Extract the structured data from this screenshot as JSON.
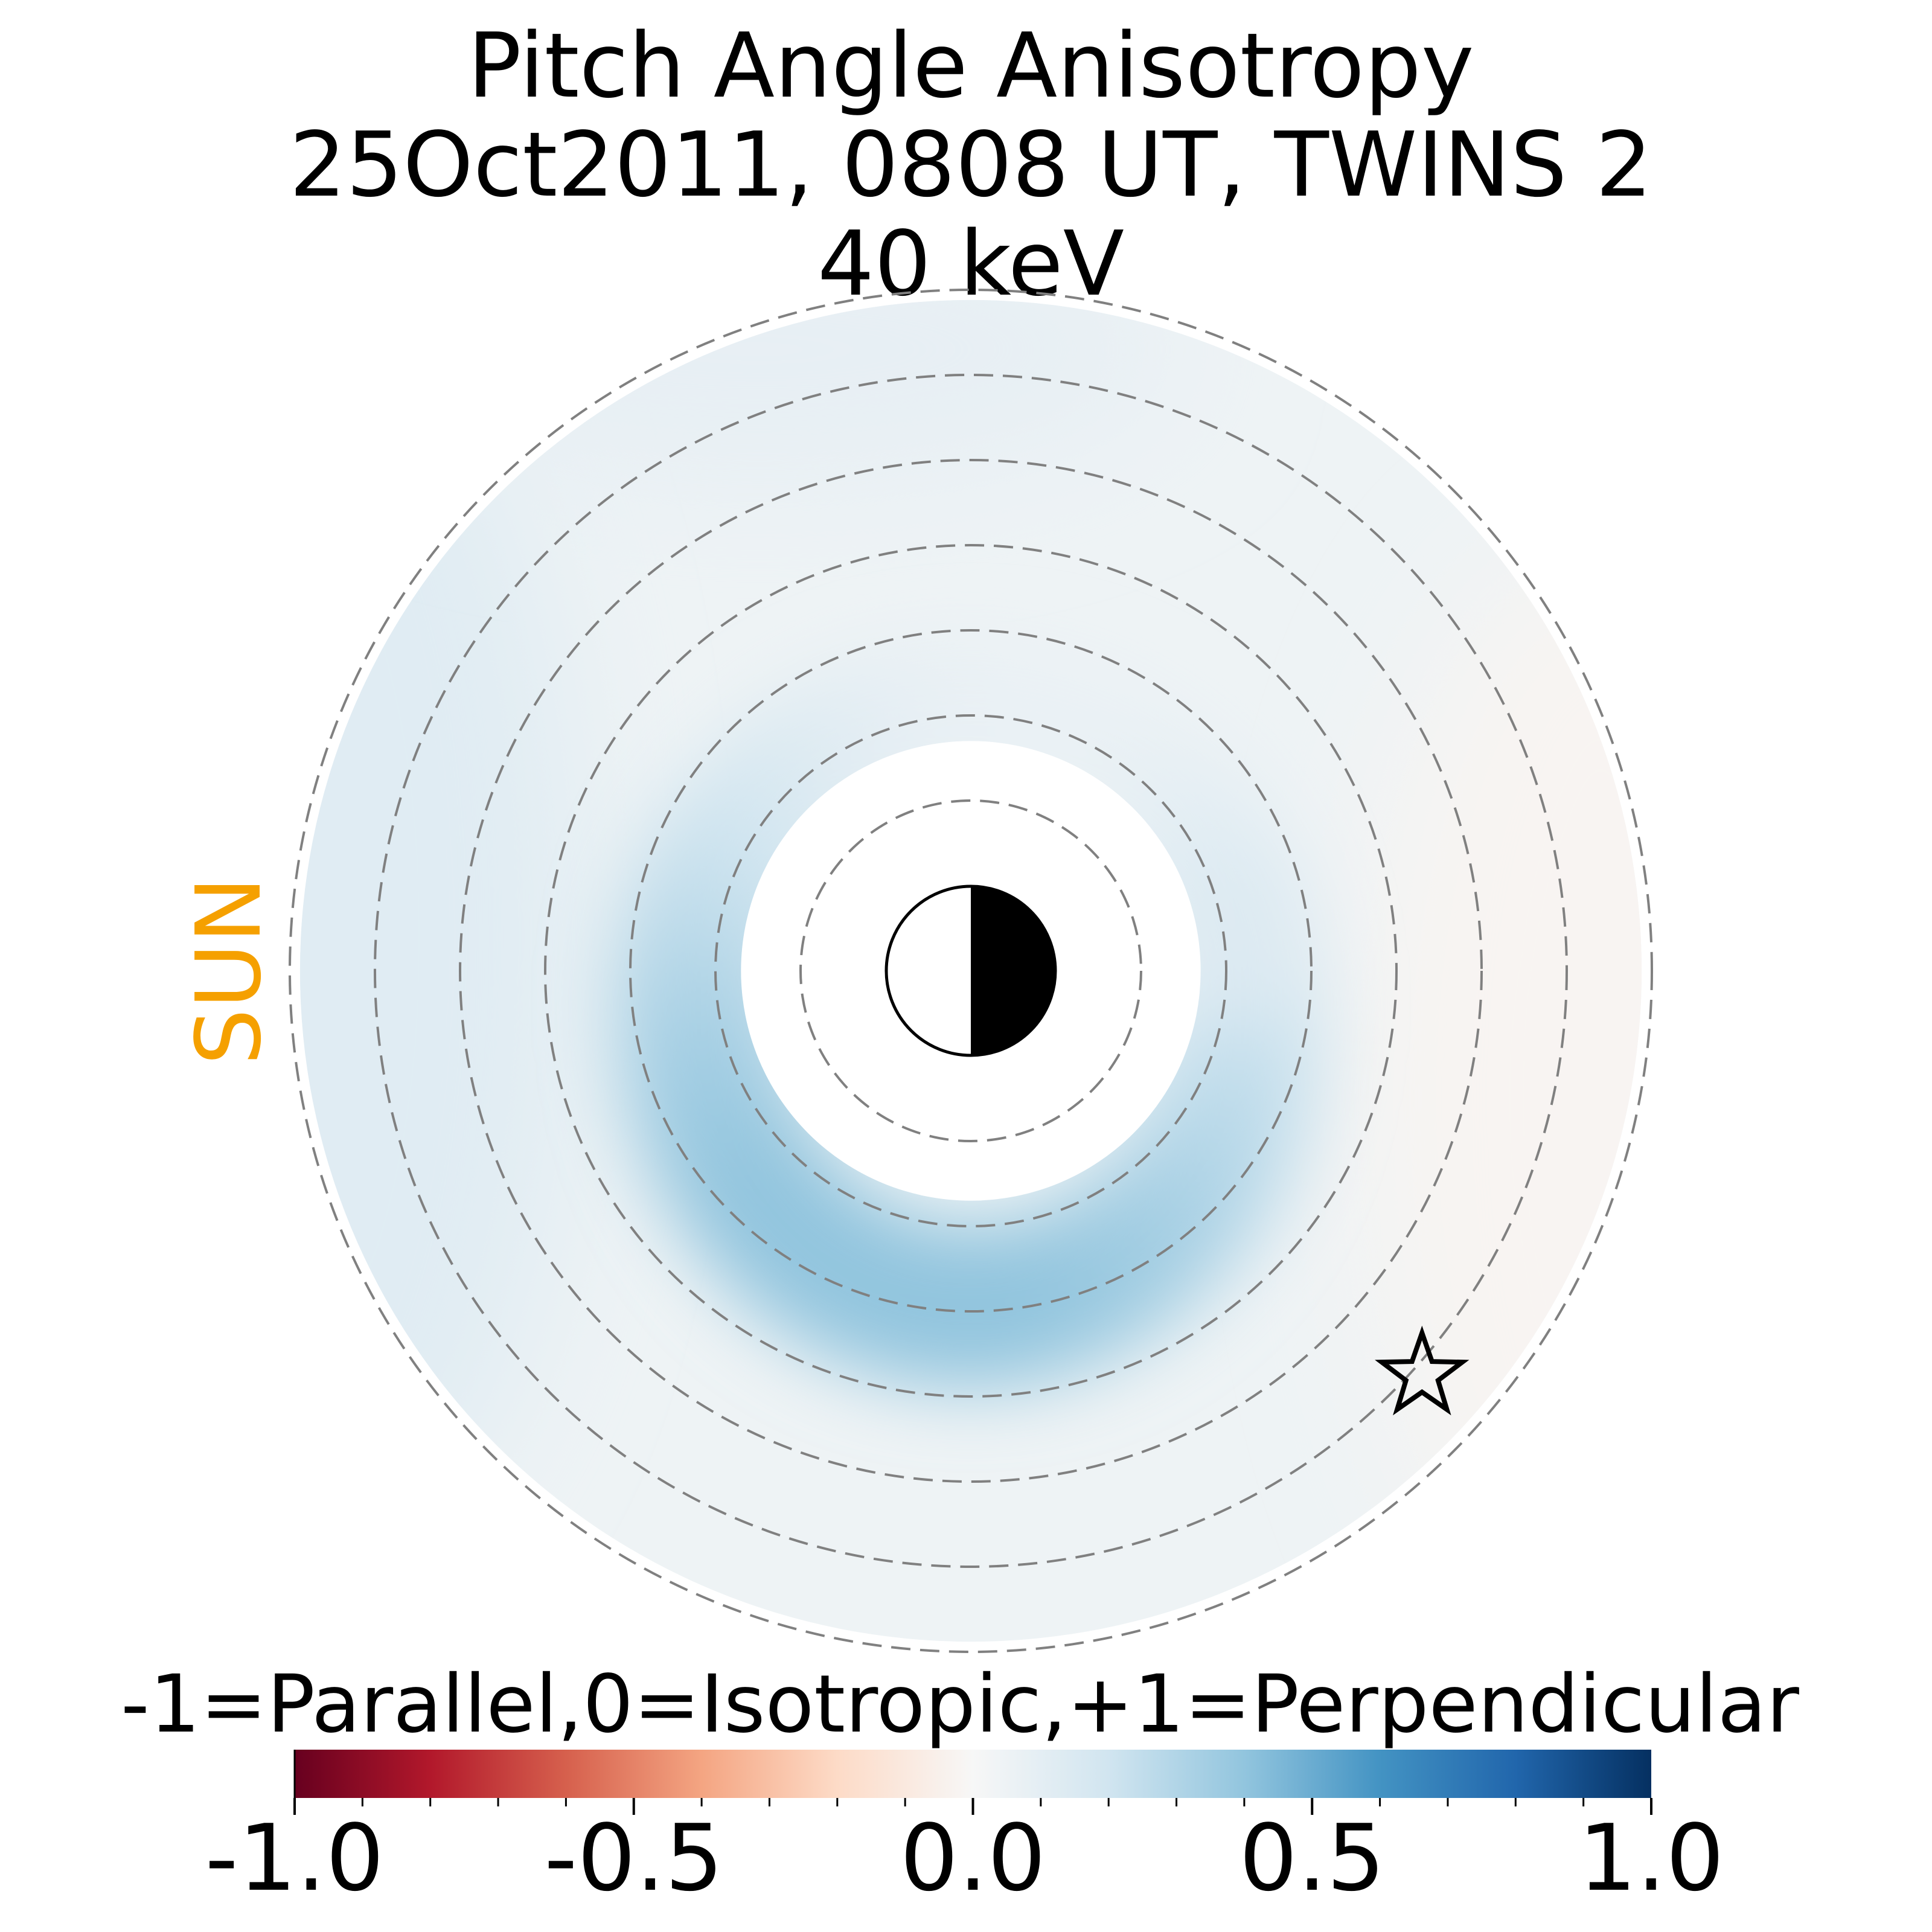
{
  "chart_data": {
    "type": "heatmap",
    "title_lines": [
      "Pitch Angle Anisotropy",
      "25Oct2011, 0808 UT,  TWINS 2",
      "40 keV"
    ],
    "sun_label": "SUN",
    "colorbar": {
      "label": "-1=Parallel,0=Isotropic,+1=Perpendicular",
      "range": [
        -1.0,
        1.0
      ],
      "ticks": [
        -1.0,
        -0.5,
        0.0,
        0.5,
        1.0
      ],
      "tick_labels": [
        "-1.0",
        "-0.5",
        "0.0",
        "0.5",
        "1.0"
      ],
      "colormap_stops": [
        "#67001f",
        "#b2182b",
        "#d6604d",
        "#f4a582",
        "#fddbc7",
        "#f7f7f7",
        "#d1e5f0",
        "#92c5de",
        "#4393c3",
        "#2166ac",
        "#053061"
      ]
    },
    "rings_re": [
      2,
      3,
      4,
      5,
      6,
      7,
      8
    ],
    "data_extent_re": [
      2.5,
      8.0
    ],
    "map_features": [
      {
        "feature": "enhanced perpendicular anisotropy band",
        "peak_value": 0.4,
        "r_re": [
          2.5,
          4.0
        ],
        "sectors": "dawn to dusk via midnight (strongest post-midnight)"
      },
      {
        "feature": "dayside / sunward flank",
        "value": 0.12,
        "r_re": [
          6.5,
          8.0
        ]
      },
      {
        "feature": "dusk outer region",
        "value": -0.02,
        "r_re": [
          5.0,
          8.0
        ]
      },
      {
        "feature": "background",
        "value": 0.05
      }
    ],
    "earth_symbol": "day-night terminator (sunward side white, anti-sunward side black)",
    "marker": "star",
    "grid": true,
    "colors": {
      "sun_label": "#f5a000",
      "ring_dash": "#808080"
    }
  }
}
